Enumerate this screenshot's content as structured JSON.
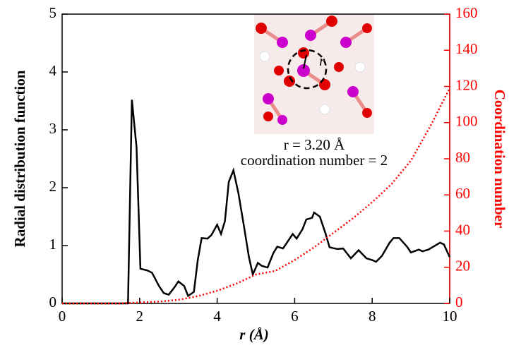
{
  "chart_data": {
    "type": "line",
    "x_label": "r (Å)",
    "y_label": "Radial distribution function",
    "y2_label": "Coordination number",
    "annotations": [
      "r",
      "r = 3.20 Å",
      "coordination number = 2"
    ],
    "xlim": [
      0,
      10
    ],
    "xticks": [
      0,
      2,
      4,
      6,
      8,
      10
    ],
    "ylim": [
      0,
      5
    ],
    "yticks": [
      0,
      1,
      2,
      3,
      4,
      5
    ],
    "y2lim": [
      0,
      160
    ],
    "y2ticks": [
      0,
      20,
      40,
      60,
      80,
      100,
      120,
      140,
      160
    ],
    "y2_color": "#ff0000",
    "series": [
      {
        "color": "#000000",
        "style": "solid",
        "axis": "y",
        "x": [
          0,
          1.7,
          1.8,
          1.92,
          2.02,
          2.2,
          2.32,
          2.5,
          2.62,
          2.75,
          2.9,
          3.0,
          3.15,
          3.25,
          3.4,
          3.5,
          3.6,
          3.75,
          3.85,
          4.0,
          4.1,
          4.2,
          4.3,
          4.42,
          4.55,
          4.7,
          4.82,
          4.92,
          5.05,
          5.15,
          5.3,
          5.45,
          5.55,
          5.7,
          5.8,
          5.95,
          6.05,
          6.2,
          6.3,
          6.45,
          6.5,
          6.65,
          6.8,
          6.9,
          7.1,
          7.25,
          7.45,
          7.65,
          7.85,
          8.0,
          8.1,
          8.25,
          8.45,
          8.55,
          8.7,
          8.9,
          9.0,
          9.2,
          9.3,
          9.45,
          9.55,
          9.75,
          9.85,
          10.0
        ],
        "values": [
          0,
          0,
          3.52,
          2.7,
          0.6,
          0.57,
          0.53,
          0.3,
          0.18,
          0.15,
          0.28,
          0.38,
          0.3,
          0.13,
          0.2,
          0.75,
          1.13,
          1.12,
          1.18,
          1.36,
          1.2,
          1.42,
          2.1,
          2.3,
          1.9,
          1.3,
          0.8,
          0.5,
          0.7,
          0.65,
          0.62,
          0.87,
          0.98,
          0.95,
          1.05,
          1.2,
          1.12,
          1.28,
          1.45,
          1.48,
          1.57,
          1.5,
          1.2,
          0.97,
          0.94,
          0.95,
          0.78,
          0.92,
          0.78,
          0.75,
          0.72,
          0.82,
          1.05,
          1.13,
          1.13,
          0.98,
          0.88,
          0.93,
          0.9,
          0.93,
          0.97,
          1.05,
          1.02,
          0.8
        ]
      },
      {
        "color": "#ff0000",
        "style": "dotted",
        "axis": "y2",
        "x": [
          0,
          1.5,
          2.0,
          2.5,
          3.0,
          3.5,
          4.0,
          4.5,
          5.0,
          5.5,
          6.0,
          6.5,
          7.0,
          7.5,
          8.0,
          8.5,
          9.0,
          9.5,
          10.0
        ],
        "values": [
          0,
          0,
          0.5,
          1,
          2,
          4,
          7,
          11,
          16,
          18,
          24,
          31,
          39,
          47,
          56,
          66,
          79,
          98,
          119
        ]
      }
    ]
  }
}
